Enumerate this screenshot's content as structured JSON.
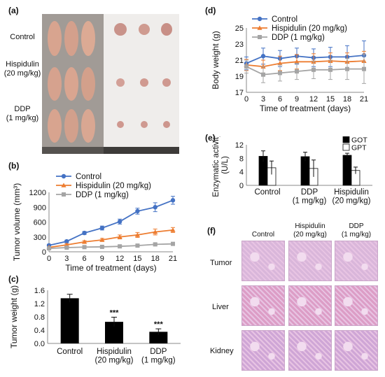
{
  "panel_a": {
    "label": "(a)",
    "groups": [
      "Control",
      "Hispidulin\n(20 mg/kg)",
      "DDP\n(1 mg/kg)"
    ]
  },
  "panel_f": {
    "label": "(f)",
    "columns": [
      "Control",
      "Hispidulin\n(20 mg/kg)",
      "DDP\n(1 mg/kg)"
    ],
    "rows": [
      "Tumor",
      "Liver",
      "Kidney"
    ],
    "colors": {
      "tumor": "#d9b6da",
      "liver": "#dc9dc6",
      "kidney": "#cfa6d6",
      "background": "#f2dcef"
    }
  },
  "chart_data": [
    {
      "id": "b",
      "panel": "(b)",
      "type": "line",
      "xlabel": "Time of treatment (days)",
      "ylabel": "Tumor volume (mm³)",
      "x": [
        0,
        3,
        6,
        9,
        12,
        15,
        18,
        21
      ],
      "xlim": [
        0,
        21
      ],
      "ylim": [
        0,
        1200
      ],
      "yticks": [
        0,
        300,
        600,
        900,
        1200
      ],
      "legend": "top-left",
      "series": [
        {
          "name": "Control",
          "color": "#4472c4",
          "marker": "circle",
          "values": [
            130,
            210,
            380,
            480,
            610,
            820,
            900,
            1040
          ],
          "errors": [
            20,
            25,
            30,
            40,
            50,
            60,
            90,
            80
          ]
        },
        {
          "name": "Hispidulin (20 mg/kg)",
          "color": "#ed7d31",
          "marker": "triangle",
          "values": [
            90,
            140,
            200,
            240,
            300,
            340,
            400,
            440
          ],
          "errors": [
            15,
            20,
            25,
            30,
            40,
            50,
            60,
            50
          ]
        },
        {
          "name": "DDP (1 mg/kg)",
          "color": "#a5a5a5",
          "marker": "square",
          "values": [
            70,
            85,
            95,
            100,
            110,
            125,
            150,
            160
          ],
          "errors": [
            10,
            12,
            12,
            15,
            15,
            18,
            20,
            20
          ]
        }
      ]
    },
    {
      "id": "c",
      "panel": "(c)",
      "type": "bar",
      "ylabel": "Tumor weight (g)",
      "categories": [
        "Control",
        "Hispidulin\n(20 mg/kg)",
        "DDP\n(1 mg/kg)"
      ],
      "values": [
        1.36,
        0.65,
        0.35
      ],
      "errors": [
        0.12,
        0.14,
        0.09
      ],
      "annotations": [
        "",
        "***",
        "***"
      ],
      "ylim": [
        0,
        1.6
      ],
      "yticks": [
        0,
        0.4,
        0.8,
        1.2,
        1.6
      ],
      "bar_color": "#000000"
    },
    {
      "id": "d",
      "panel": "(d)",
      "type": "line",
      "xlabel": "Time of treatment (days)",
      "ylabel": "Body weight (g)",
      "x": [
        0,
        3,
        6,
        9,
        12,
        15,
        18,
        21
      ],
      "xlim": [
        0,
        21
      ],
      "ylim": [
        17,
        25
      ],
      "yticks": [
        17,
        19,
        21,
        23,
        25
      ],
      "legend": "top-left",
      "series": [
        {
          "name": "Control",
          "color": "#4472c4",
          "marker": "circle",
          "values": [
            20.6,
            21.5,
            21.2,
            21.5,
            21.3,
            21.4,
            21.4,
            21.6
          ],
          "errors": [
            0.8,
            1.0,
            1.0,
            1.0,
            1.1,
            1.2,
            1.4,
            1.8
          ]
        },
        {
          "name": "Hispidulin (20 mg/kg)",
          "color": "#ed7d31",
          "marker": "triangle",
          "values": [
            20.4,
            20.2,
            20.6,
            20.8,
            20.8,
            20.9,
            20.8,
            20.9
          ],
          "errors": [
            0.7,
            0.8,
            0.9,
            0.9,
            1.0,
            1.0,
            1.1,
            1.2
          ]
        },
        {
          "name": "DDP (1 mg/kg)",
          "color": "#a5a5a5",
          "marker": "square",
          "values": [
            20.2,
            19.2,
            19.4,
            19.6,
            19.8,
            19.8,
            19.9,
            19.9
          ],
          "errors": [
            0.8,
            1.0,
            1.0,
            1.0,
            1.1,
            1.2,
            1.3,
            1.8
          ]
        }
      ]
    },
    {
      "id": "e",
      "panel": "(e)",
      "type": "bar",
      "ylabel": "Enzymatic activity (U/L)",
      "categories": [
        "Control",
        "DDP\n(1 mg/kg)",
        "Hispidulin\n(20 mg/kg)"
      ],
      "ylim": [
        0,
        12
      ],
      "yticks": [
        0,
        4,
        8,
        12
      ],
      "legend": "top-right",
      "series": [
        {
          "name": "GOT",
          "color": "#000000",
          "values": [
            8.6,
            8.5,
            8.9
          ],
          "errors": [
            1.6,
            1.3,
            0.6
          ]
        },
        {
          "name": "GPT",
          "color": "#ffffff",
          "values": [
            5.2,
            5.0,
            4.4
          ],
          "errors": [
            2.0,
            2.5,
            1.0
          ]
        }
      ]
    }
  ]
}
